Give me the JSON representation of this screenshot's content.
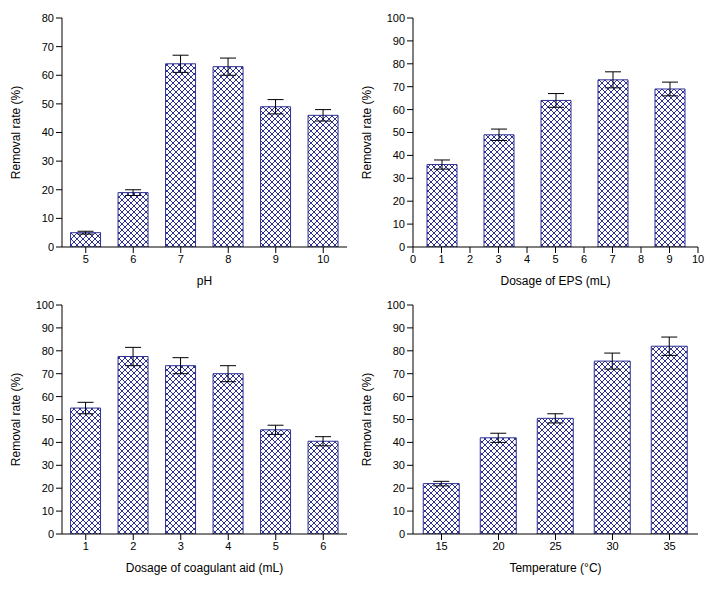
{
  "chart_data": [
    {
      "type": "bar",
      "x_label": "pH",
      "y_label": "Removal rate (%)",
      "categories": [
        "5",
        "6",
        "7",
        "8",
        "9",
        "10"
      ],
      "values": [
        5,
        19,
        64,
        63,
        49,
        46
      ],
      "errors": [
        0.5,
        1,
        3,
        3,
        2.5,
        2
      ],
      "color": "#2e3192",
      "ylim": [
        0,
        80
      ],
      "yticks": [
        0,
        10,
        20,
        30,
        40,
        50,
        60,
        70,
        80
      ]
    },
    {
      "type": "bar",
      "x_label": "Dosage of EPS (mL)",
      "y_label": "Removal rate (%)",
      "x": [
        1,
        3,
        5,
        7,
        9
      ],
      "values": [
        36,
        49,
        64,
        73,
        69
      ],
      "errors": [
        2,
        2.5,
        3,
        3.5,
        3
      ],
      "xlim": [
        0,
        10
      ],
      "xticks": [
        0,
        1,
        2,
        3,
        4,
        5,
        6,
        7,
        8,
        9,
        10
      ],
      "color": "#2e3192",
      "ylim": [
        0,
        100
      ],
      "yticks": [
        0,
        10,
        20,
        30,
        40,
        50,
        60,
        70,
        80,
        90,
        100
      ]
    },
    {
      "type": "bar",
      "x_label": "Dosage of coagulant aid (mL)",
      "y_label": "Removal rate (%)",
      "categories": [
        "1",
        "2",
        "3",
        "4",
        "5",
        "6"
      ],
      "values": [
        55,
        77.5,
        73.5,
        70,
        45.5,
        40.5
      ],
      "errors": [
        2.5,
        4,
        3.5,
        3.5,
        2,
        2
      ],
      "color": "#2e3192",
      "ylim": [
        0,
        100
      ],
      "yticks": [
        0,
        10,
        20,
        30,
        40,
        50,
        60,
        70,
        80,
        90,
        100
      ]
    },
    {
      "type": "bar",
      "x_label": "Temperature (°C)",
      "y_label": "Removal rate (%)",
      "categories": [
        "15",
        "20",
        "25",
        "30",
        "35"
      ],
      "values": [
        22,
        42,
        50.5,
        75.5,
        82
      ],
      "errors": [
        1,
        2,
        2,
        3.5,
        4
      ],
      "color": "#2e3192",
      "ylim": [
        0,
        100
      ],
      "yticks": [
        0,
        10,
        20,
        30,
        40,
        50,
        60,
        70,
        80,
        90,
        100
      ]
    }
  ]
}
